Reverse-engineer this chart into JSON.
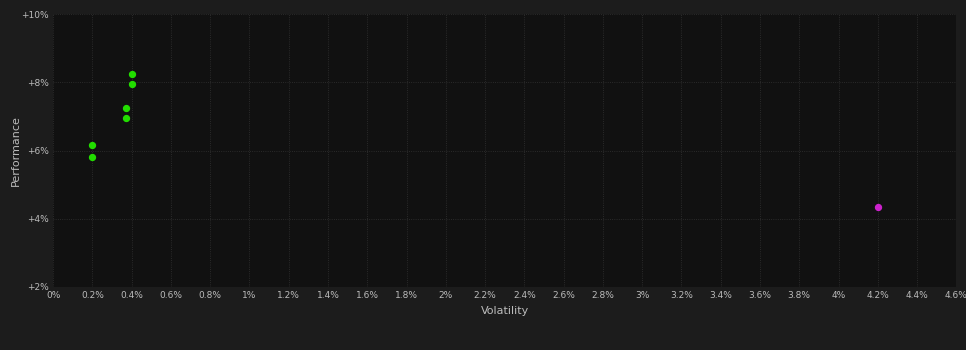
{
  "background_color": "#1c1c1c",
  "plot_bg_color": "#111111",
  "grid_color": "#333333",
  "text_color": "#bbbbbb",
  "xlabel": "Volatility",
  "ylabel": "Performance",
  "xlim": [
    0,
    0.046
  ],
  "ylim": [
    0.02,
    0.1
  ],
  "xtick_step": 0.002,
  "ytick_values": [
    0.02,
    0.04,
    0.06,
    0.08,
    0.1
  ],
  "ytick_labels": [
    "+2%",
    "+4%",
    "+6%",
    "+8%",
    "+10%"
  ],
  "green_points": [
    [
      0.004,
      0.0825
    ],
    [
      0.004,
      0.0795
    ],
    [
      0.0037,
      0.0725
    ],
    [
      0.0037,
      0.0695
    ],
    [
      0.002,
      0.0615
    ],
    [
      0.002,
      0.058
    ]
  ],
  "magenta_points": [
    [
      0.042,
      0.0435
    ]
  ],
  "green_color": "#22dd00",
  "magenta_color": "#cc22cc",
  "point_size": 18
}
